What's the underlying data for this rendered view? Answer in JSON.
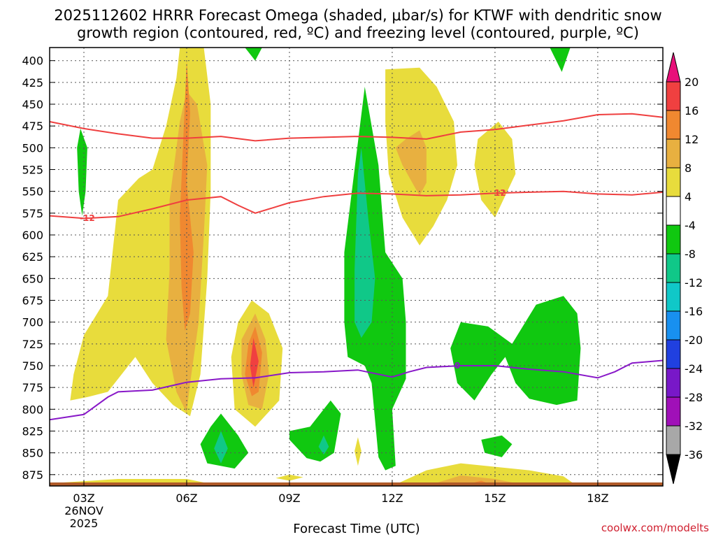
{
  "chart_data": {
    "type": "contour",
    "title_line1": "2025112602 HRRR Forecast Omega (shaded, μbar/s) for KTWF with dendritic snow",
    "title_line2": "growth region (contoured, red, ºC) and freezing level (contoured, purple, ºC)",
    "xlabel": "Forecast Time (UTC)",
    "credit": "coolwx.com/modelts",
    "x_ticks": [
      {
        "hour": 3,
        "label": "03Z",
        "label2": "26NOV",
        "label3": "2025"
      },
      {
        "hour": 6,
        "label": "06Z"
      },
      {
        "hour": 9,
        "label": "09Z"
      },
      {
        "hour": 12,
        "label": "12Z"
      },
      {
        "hour": 15,
        "label": "15Z"
      },
      {
        "hour": 18,
        "label": "18Z"
      }
    ],
    "xlim": [
      2.0,
      19.9
    ],
    "ylim": [
      888,
      385
    ],
    "y_ticks": [
      400,
      425,
      450,
      475,
      500,
      525,
      550,
      575,
      600,
      625,
      650,
      675,
      700,
      725,
      750,
      775,
      800,
      825,
      850,
      875
    ],
    "colorbar": {
      "levels": [
        20,
        16,
        12,
        8,
        4,
        -4,
        -8,
        -12,
        -16,
        -20,
        -24,
        -28,
        -32,
        -36
      ],
      "colors": [
        "#e8107a",
        "#f04040",
        "#f08830",
        "#e8b040",
        "#e8dc3c",
        "#ffffff",
        "#10c810",
        "#10c888",
        "#10c8c8",
        "#1890f0",
        "#2040e0",
        "#7818c8",
        "#a010b8",
        "#a8a8a8",
        "#000000"
      ]
    },
    "dgz_lines": [
      {
        "name": "upper",
        "label": "",
        "color": "#ef3f3f",
        "points": [
          [
            2.0,
            470
          ],
          [
            3.0,
            478
          ],
          [
            4.0,
            484
          ],
          [
            5.0,
            489
          ],
          [
            6.0,
            489
          ],
          [
            7.0,
            487
          ],
          [
            8.0,
            492
          ],
          [
            9.0,
            489
          ],
          [
            10.0,
            488
          ],
          [
            11.0,
            487
          ],
          [
            12.0,
            488
          ],
          [
            13.0,
            490
          ],
          [
            14.0,
            482
          ],
          [
            15.0,
            479
          ],
          [
            16.0,
            474
          ],
          [
            17.0,
            469
          ],
          [
            18.0,
            462
          ],
          [
            19.0,
            461
          ],
          [
            19.9,
            465
          ]
        ]
      },
      {
        "name": "lower",
        "label": "-12",
        "label_hours": [
          3.1,
          15.1
        ],
        "color": "#ef3f3f",
        "points": [
          [
            2.0,
            578
          ],
          [
            3.0,
            581
          ],
          [
            4.0,
            579
          ],
          [
            5.0,
            570
          ],
          [
            6.0,
            560
          ],
          [
            7.0,
            556
          ],
          [
            7.5,
            566
          ],
          [
            8.0,
            575
          ],
          [
            8.5,
            569
          ],
          [
            9.0,
            563
          ],
          [
            10.0,
            556
          ],
          [
            11.0,
            552
          ],
          [
            12.0,
            553
          ],
          [
            13.0,
            555
          ],
          [
            14.0,
            554
          ],
          [
            15.0,
            552
          ],
          [
            16.0,
            551
          ],
          [
            17.0,
            550
          ],
          [
            18.0,
            553
          ],
          [
            19.0,
            554
          ],
          [
            19.9,
            551
          ]
        ]
      }
    ],
    "freezing_line": {
      "label": "0",
      "label_hour": 13.9,
      "color": "#8818c8",
      "points": [
        [
          2.0,
          812
        ],
        [
          3.0,
          806
        ],
        [
          3.7,
          786
        ],
        [
          4.0,
          780
        ],
        [
          5.0,
          778
        ],
        [
          6.0,
          769
        ],
        [
          7.0,
          765
        ],
        [
          8.0,
          764
        ],
        [
          9.0,
          758
        ],
        [
          10.0,
          757
        ],
        [
          11.0,
          755
        ],
        [
          12.0,
          763
        ],
        [
          12.5,
          757
        ],
        [
          13.0,
          752
        ],
        [
          14.0,
          750
        ],
        [
          15.0,
          750
        ],
        [
          16.0,
          754
        ],
        [
          17.0,
          757
        ],
        [
          18.0,
          764
        ],
        [
          18.5,
          757
        ],
        [
          19.0,
          747
        ],
        [
          19.9,
          744
        ]
      ]
    },
    "omega_regions": [
      {
        "level": 4,
        "color": "#e8dc3c",
        "points": [
          [
            5.8,
            385
          ],
          [
            6.5,
            385
          ],
          [
            6.7,
            450
          ],
          [
            6.7,
            550
          ],
          [
            6.6,
            650
          ],
          [
            6.4,
            760
          ],
          [
            6.1,
            808
          ],
          [
            5.6,
            795
          ],
          [
            5.0,
            770
          ],
          [
            4.5,
            740
          ],
          [
            3.7,
            780
          ],
          [
            3.1,
            786
          ],
          [
            2.6,
            790
          ],
          [
            2.7,
            760
          ],
          [
            3.0,
            715
          ],
          [
            3.7,
            670
          ],
          [
            4.0,
            560
          ],
          [
            4.6,
            535
          ],
          [
            5.0,
            525
          ],
          [
            5.4,
            475
          ],
          [
            5.7,
            420
          ]
        ]
      },
      {
        "level": 8,
        "color": "#e8b040",
        "points": [
          [
            6.0,
            435
          ],
          [
            6.3,
            450
          ],
          [
            6.6,
            520
          ],
          [
            6.5,
            600
          ],
          [
            6.35,
            700
          ],
          [
            6.1,
            770
          ],
          [
            6.0,
            804
          ],
          [
            5.7,
            780
          ],
          [
            5.4,
            720
          ],
          [
            5.5,
            640
          ],
          [
            5.5,
            560
          ],
          [
            5.8,
            470
          ]
        ]
      },
      {
        "level": 12,
        "color": "#f08830",
        "points": [
          [
            6.0,
            400
          ],
          [
            6.1,
            460
          ],
          [
            6.0,
            540
          ],
          [
            6.2,
            620
          ],
          [
            6.1,
            690
          ],
          [
            5.95,
            710
          ],
          [
            5.85,
            660
          ],
          [
            5.8,
            580
          ],
          [
            5.9,
            490
          ]
        ]
      },
      {
        "level": 4,
        "color": "#e8dc3c",
        "points": [
          [
            11.8,
            410
          ],
          [
            12.8,
            408
          ],
          [
            13.3,
            430
          ],
          [
            13.8,
            470
          ],
          [
            13.9,
            520
          ],
          [
            13.6,
            560
          ],
          [
            13.2,
            590
          ],
          [
            12.8,
            612
          ],
          [
            12.3,
            580
          ],
          [
            11.9,
            530
          ],
          [
            11.8,
            470
          ]
        ]
      },
      {
        "level": 8,
        "color": "#e8b040",
        "points": [
          [
            12.8,
            480
          ],
          [
            13.0,
            500
          ],
          [
            13.0,
            540
          ],
          [
            12.8,
            555
          ],
          [
            12.3,
            520
          ],
          [
            12.1,
            500
          ],
          [
            12.4,
            490
          ]
        ]
      },
      {
        "level": 4,
        "color": "#e8dc3c",
        "points": [
          [
            15.1,
            470
          ],
          [
            15.5,
            490
          ],
          [
            15.6,
            530
          ],
          [
            15.3,
            555
          ],
          [
            15.0,
            580
          ],
          [
            14.6,
            560
          ],
          [
            14.4,
            520
          ],
          [
            14.5,
            490
          ]
        ]
      },
      {
        "level": 4,
        "color": "#e8dc3c",
        "points": [
          [
            7.9,
            675
          ],
          [
            8.4,
            690
          ],
          [
            8.8,
            730
          ],
          [
            8.7,
            790
          ],
          [
            8.0,
            820
          ],
          [
            7.4,
            800
          ],
          [
            7.3,
            740
          ],
          [
            7.5,
            700
          ]
        ]
      },
      {
        "level": 8,
        "color": "#e8b040",
        "points": [
          [
            8.0,
            690
          ],
          [
            8.3,
            720
          ],
          [
            8.4,
            760
          ],
          [
            8.2,
            800
          ],
          [
            7.8,
            795
          ],
          [
            7.6,
            760
          ],
          [
            7.6,
            720
          ]
        ]
      },
      {
        "level": 12,
        "color": "#f08830",
        "points": [
          [
            8.0,
            705
          ],
          [
            8.2,
            735
          ],
          [
            8.1,
            780
          ],
          [
            7.9,
            785
          ],
          [
            7.7,
            760
          ],
          [
            7.8,
            725
          ]
        ]
      },
      {
        "level": 16,
        "color": "#f04040",
        "points": [
          [
            7.95,
            718
          ],
          [
            8.1,
            745
          ],
          [
            7.95,
            775
          ],
          [
            7.85,
            750
          ]
        ]
      },
      {
        "level": 4,
        "color": "#e8dc3c",
        "points": [
          [
            2.0,
            885
          ],
          [
            4.0,
            880
          ],
          [
            6.0,
            880
          ],
          [
            7.0,
            888
          ],
          [
            2.0,
            888
          ]
        ]
      },
      {
        "level": 4,
        "color": "#e8dc3c",
        "points": [
          [
            9.0,
            875
          ],
          [
            9.4,
            878
          ],
          [
            9.0,
            882
          ],
          [
            8.6,
            879
          ]
        ]
      },
      {
        "level": 4,
        "color": "#e8dc3c",
        "points": [
          [
            11.0,
            832
          ],
          [
            11.1,
            848
          ],
          [
            11.0,
            865
          ],
          [
            10.9,
            848
          ]
        ]
      },
      {
        "level": 4,
        "color": "#e8dc3c",
        "points": [
          [
            12.0,
            888
          ],
          [
            13.0,
            870
          ],
          [
            14.0,
            862
          ],
          [
            15.0,
            866
          ],
          [
            16.0,
            870
          ],
          [
            17.0,
            877
          ],
          [
            17.4,
            888
          ]
        ]
      },
      {
        "level": 8,
        "color": "#e8b040",
        "points": [
          [
            13.0,
            888
          ],
          [
            14.0,
            876
          ],
          [
            15.0,
            880
          ],
          [
            16.0,
            888
          ]
        ]
      },
      {
        "level": 12,
        "color": "#f08830",
        "points": [
          [
            14.0,
            888
          ],
          [
            14.6,
            882
          ],
          [
            15.0,
            888
          ]
        ]
      },
      {
        "level": -4,
        "color": "#10c810",
        "points": [
          [
            10.6,
            620
          ],
          [
            11.2,
            430
          ],
          [
            11.6,
            520
          ],
          [
            11.8,
            620
          ],
          [
            12.3,
            650
          ],
          [
            12.4,
            700
          ],
          [
            12.4,
            765
          ],
          [
            12.0,
            800
          ],
          [
            12.1,
            865
          ],
          [
            11.8,
            870
          ],
          [
            11.6,
            855
          ],
          [
            11.4,
            770
          ],
          [
            11.2,
            750
          ],
          [
            10.7,
            740
          ],
          [
            10.6,
            700
          ]
        ]
      },
      {
        "level": -8,
        "color": "#10c888",
        "points": [
          [
            11.0,
            530
          ],
          [
            11.1,
            500
          ],
          [
            11.3,
            580
          ],
          [
            11.5,
            650
          ],
          [
            11.4,
            700
          ],
          [
            11.1,
            718
          ],
          [
            10.9,
            700
          ],
          [
            10.9,
            640
          ]
        ]
      },
      {
        "level": -4,
        "color": "#10c810",
        "points": [
          [
            14.0,
            700
          ],
          [
            14.8,
            705
          ],
          [
            15.5,
            725
          ],
          [
            16.2,
            680
          ],
          [
            17.0,
            670
          ],
          [
            17.4,
            690
          ],
          [
            17.5,
            730
          ],
          [
            17.4,
            790
          ],
          [
            16.8,
            795
          ],
          [
            16.0,
            788
          ],
          [
            15.6,
            770
          ],
          [
            15.3,
            740
          ],
          [
            14.9,
            760
          ],
          [
            14.4,
            790
          ],
          [
            13.9,
            770
          ],
          [
            13.7,
            730
          ]
        ]
      },
      {
        "level": -4,
        "color": "#10c810",
        "points": [
          [
            15.2,
            830
          ],
          [
            15.5,
            840
          ],
          [
            15.2,
            855
          ],
          [
            14.7,
            850
          ],
          [
            14.6,
            835
          ]
        ]
      },
      {
        "level": -4,
        "color": "#10c810",
        "points": [
          [
            7.0,
            805
          ],
          [
            7.5,
            830
          ],
          [
            7.8,
            850
          ],
          [
            7.4,
            868
          ],
          [
            6.6,
            862
          ],
          [
            6.4,
            840
          ],
          [
            6.7,
            820
          ]
        ]
      },
      {
        "level": -8,
        "color": "#10c888",
        "points": [
          [
            7.0,
            825
          ],
          [
            7.2,
            845
          ],
          [
            7.0,
            862
          ],
          [
            6.8,
            845
          ]
        ]
      },
      {
        "level": -4,
        "color": "#10c810",
        "points": [
          [
            10.2,
            790
          ],
          [
            10.5,
            805
          ],
          [
            10.3,
            850
          ],
          [
            9.9,
            860
          ],
          [
            9.5,
            856
          ],
          [
            9.0,
            835
          ],
          [
            9.0,
            825
          ],
          [
            9.6,
            820
          ]
        ]
      },
      {
        "level": -8,
        "color": "#10c888",
        "points": [
          [
            10.0,
            830
          ],
          [
            10.15,
            843
          ],
          [
            10.0,
            852
          ],
          [
            9.85,
            843
          ]
        ]
      },
      {
        "level": -4,
        "color": "#10c810",
        "points": [
          [
            2.9,
            478
          ],
          [
            3.1,
            500
          ],
          [
            3.05,
            550
          ],
          [
            2.95,
            578
          ],
          [
            2.85,
            550
          ],
          [
            2.8,
            500
          ]
        ]
      },
      {
        "level": -4,
        "color": "#10c810",
        "points": [
          [
            7.7,
            385
          ],
          [
            8.2,
            385
          ],
          [
            8.0,
            400
          ]
        ]
      },
      {
        "level": -4,
        "color": "#10c810",
        "points": [
          [
            16.6,
            385
          ],
          [
            17.2,
            385
          ],
          [
            16.95,
            413
          ]
        ]
      }
    ],
    "surface": {
      "level": "ground",
      "color": "#b05a28",
      "from_hpa": 884
    }
  }
}
